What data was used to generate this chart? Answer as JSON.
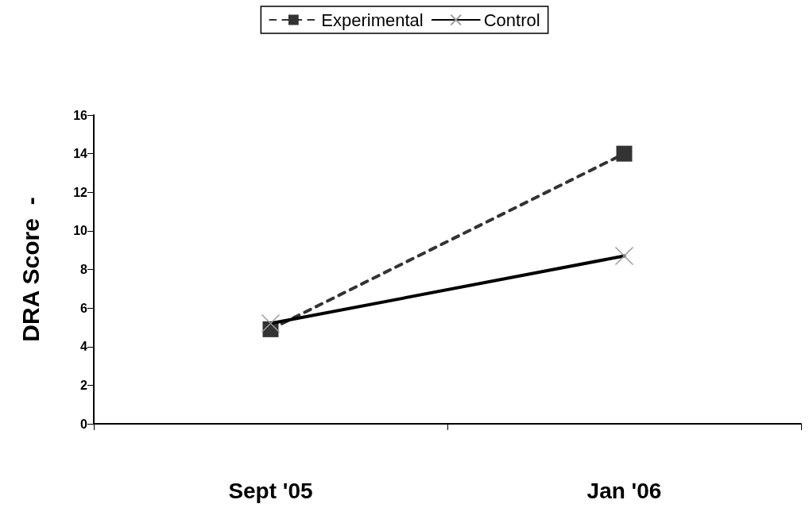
{
  "chart_data": {
    "type": "line",
    "ylabel": "DRA Score  -",
    "categories": [
      "Sept '05",
      "Jan '06"
    ],
    "series": [
      {
        "name": "Experimental",
        "color": "#333333",
        "values": [
          4.9,
          14.0
        ],
        "marker": "square",
        "line_style": "dashed"
      },
      {
        "name": "Control",
        "color": "#000000",
        "values": [
          5.2,
          8.7
        ],
        "marker": "cross",
        "line_style": "solid"
      }
    ],
    "ylim": [
      0,
      16
    ],
    "yticks": [
      0,
      2,
      4,
      6,
      8,
      10,
      12,
      14,
      16
    ],
    "grid": false,
    "legend": "top"
  }
}
